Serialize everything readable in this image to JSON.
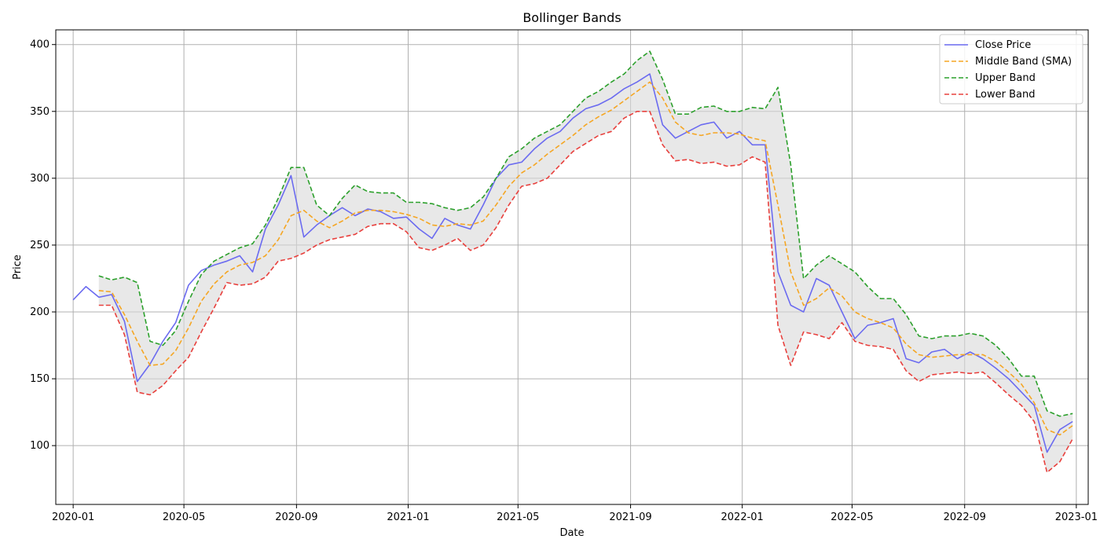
{
  "chart_data": {
    "type": "line",
    "title": "Bollinger Bands",
    "xlabel": "Date",
    "ylabel": "Price",
    "grid": true,
    "legend_position": "top-right",
    "xlim": [
      "2019-12-13",
      "2023-01-14"
    ],
    "ylim": [
      56,
      411
    ],
    "x_ticks": [
      {
        "date": "2020-01-01",
        "label": "2020-01"
      },
      {
        "date": "2020-05-01",
        "label": "2020-05"
      },
      {
        "date": "2020-09-01",
        "label": "2020-09"
      },
      {
        "date": "2021-01-01",
        "label": "2021-01"
      },
      {
        "date": "2021-05-01",
        "label": "2021-05"
      },
      {
        "date": "2021-09-01",
        "label": "2021-09"
      },
      {
        "date": "2022-01-01",
        "label": "2022-01"
      },
      {
        "date": "2022-05-01",
        "label": "2022-05"
      },
      {
        "date": "2022-09-01",
        "label": "2022-09"
      },
      {
        "date": "2023-01-01",
        "label": "2023-01"
      }
    ],
    "y_ticks": [
      100,
      150,
      200,
      250,
      300,
      350,
      400
    ],
    "band_fill_color": "#d9d9d9",
    "x": [
      "2020-01-01",
      "2020-01-15",
      "2020-01-29",
      "2020-02-12",
      "2020-02-26",
      "2020-03-11",
      "2020-03-25",
      "2020-04-08",
      "2020-04-22",
      "2020-05-06",
      "2020-05-20",
      "2020-06-03",
      "2020-06-17",
      "2020-07-01",
      "2020-07-15",
      "2020-07-29",
      "2020-08-12",
      "2020-08-26",
      "2020-09-09",
      "2020-09-23",
      "2020-10-07",
      "2020-10-21",
      "2020-11-04",
      "2020-11-18",
      "2020-12-02",
      "2020-12-16",
      "2020-12-30",
      "2021-01-13",
      "2021-01-27",
      "2021-02-10",
      "2021-02-24",
      "2021-03-10",
      "2021-03-24",
      "2021-04-07",
      "2021-04-21",
      "2021-05-05",
      "2021-05-19",
      "2021-06-02",
      "2021-06-16",
      "2021-06-30",
      "2021-07-14",
      "2021-07-28",
      "2021-08-11",
      "2021-08-25",
      "2021-09-08",
      "2021-09-22",
      "2021-10-06",
      "2021-10-20",
      "2021-11-03",
      "2021-11-17",
      "2021-12-01",
      "2021-12-15",
      "2021-12-29",
      "2022-01-12",
      "2022-01-26",
      "2022-02-09",
      "2022-02-23",
      "2022-03-09",
      "2022-03-23",
      "2022-04-06",
      "2022-04-20",
      "2022-05-04",
      "2022-05-18",
      "2022-06-01",
      "2022-06-15",
      "2022-06-29",
      "2022-07-13",
      "2022-07-27",
      "2022-08-10",
      "2022-08-24",
      "2022-09-07",
      "2022-09-21",
      "2022-10-05",
      "2022-10-19",
      "2022-11-02",
      "2022-11-16",
      "2022-11-30",
      "2022-12-14",
      "2022-12-28"
    ],
    "series": [
      {
        "name": "Close Price",
        "color": "#6b6bf0",
        "dash": "solid",
        "values": [
          209,
          219,
          211,
          213,
          193,
          148,
          161,
          178,
          192,
          220,
          231,
          235,
          238,
          242,
          230,
          262,
          280,
          302,
          256,
          265,
          272,
          278,
          272,
          277,
          275,
          270,
          271,
          262,
          255,
          270,
          265,
          262,
          280,
          300,
          310,
          312,
          322,
          330,
          335,
          345,
          352,
          355,
          360,
          367,
          372,
          378,
          340,
          330,
          335,
          340,
          342,
          330,
          335,
          325,
          325,
          230,
          205,
          200,
          225,
          220,
          200,
          180,
          190,
          192,
          195,
          165,
          162,
          170,
          172,
          165,
          170,
          165,
          158,
          150,
          140,
          130,
          95,
          112,
          118
        ]
      },
      {
        "name": "Middle Band (SMA)",
        "color": "#f5a623",
        "dash": "dashed",
        "values": [
          null,
          null,
          216,
          215,
          198,
          178,
          160,
          161,
          171,
          188,
          208,
          221,
          230,
          235,
          237,
          242,
          254,
          272,
          276,
          268,
          263,
          268,
          274,
          276,
          276,
          275,
          273,
          270,
          265,
          264,
          266,
          265,
          268,
          280,
          294,
          304,
          310,
          318,
          325,
          332,
          340,
          346,
          351,
          358,
          365,
          372,
          360,
          342,
          334,
          332,
          334,
          334,
          333,
          330,
          328,
          280,
          230,
          205,
          210,
          218,
          212,
          200,
          195,
          192,
          188,
          176,
          168,
          166,
          167,
          168,
          168,
          168,
          163,
          155,
          146,
          132,
          112,
          108,
          115
        ]
      },
      {
        "name": "Upper Band",
        "color": "#2ca02c",
        "dash": "dashed",
        "values": [
          null,
          null,
          227,
          224,
          226,
          222,
          178,
          175,
          186,
          208,
          228,
          238,
          243,
          248,
          251,
          265,
          285,
          308,
          308,
          280,
          272,
          285,
          295,
          290,
          289,
          289,
          282,
          282,
          281,
          278,
          276,
          278,
          286,
          300,
          316,
          322,
          330,
          335,
          340,
          350,
          360,
          365,
          372,
          378,
          388,
          395,
          374,
          348,
          348,
          353,
          354,
          350,
          350,
          353,
          352,
          368,
          310,
          225,
          235,
          242,
          236,
          230,
          219,
          210,
          210,
          198,
          182,
          180,
          182,
          182,
          184,
          182,
          175,
          165,
          152,
          152,
          126,
          122,
          124
        ]
      },
      {
        "name": "Lower Band",
        "color": "#e8403d",
        "dash": "dashed",
        "values": [
          null,
          null,
          205,
          205,
          183,
          140,
          138,
          145,
          156,
          166,
          185,
          203,
          222,
          220,
          221,
          226,
          238,
          240,
          244,
          250,
          254,
          256,
          258,
          264,
          266,
          266,
          260,
          248,
          246,
          250,
          255,
          246,
          250,
          263,
          280,
          294,
          296,
          300,
          310,
          320,
          326,
          332,
          335,
          345,
          350,
          350,
          325,
          313,
          314,
          311,
          312,
          309,
          310,
          316,
          312,
          190,
          160,
          185,
          183,
          180,
          192,
          178,
          175,
          174,
          172,
          156,
          148,
          153,
          154,
          155,
          154,
          155,
          147,
          138,
          130,
          118,
          80,
          88,
          105
        ]
      }
    ]
  }
}
